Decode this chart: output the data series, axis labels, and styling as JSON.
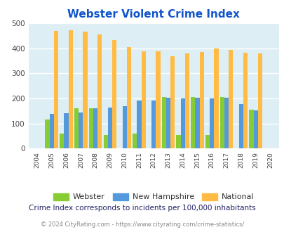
{
  "title": "Webster Violent Crime Index",
  "years": [
    2004,
    2005,
    2006,
    2007,
    2008,
    2009,
    2010,
    2011,
    2012,
    2013,
    2014,
    2015,
    2016,
    2017,
    2018,
    2019,
    2020
  ],
  "webster": [
    0,
    115,
    60,
    160,
    160,
    55,
    0,
    60,
    0,
    205,
    55,
    205,
    55,
    205,
    0,
    155,
    0
  ],
  "new_hampshire": [
    0,
    138,
    140,
    143,
    160,
    163,
    170,
    190,
    190,
    203,
    200,
    203,
    200,
    203,
    178,
    152,
    0
  ],
  "national": [
    0,
    470,
    473,
    467,
    455,
    432,
    405,
    388,
    388,
    367,
    378,
    384,
    398,
    394,
    381,
    379,
    0
  ],
  "webster_color": "#88cc33",
  "nh_color": "#5599dd",
  "national_color": "#ffbb44",
  "bg_color": "#ddeef5",
  "title_color": "#1155cc",
  "ylim": [
    0,
    500
  ],
  "yticks": [
    0,
    100,
    200,
    300,
    400,
    500
  ],
  "subtitle": "Crime Index corresponds to incidents per 100,000 inhabitants",
  "footer": "© 2024 CityRating.com - https://www.cityrating.com/crime-statistics/",
  "legend_labels": [
    "Webster",
    "New Hampshire",
    "National"
  ]
}
